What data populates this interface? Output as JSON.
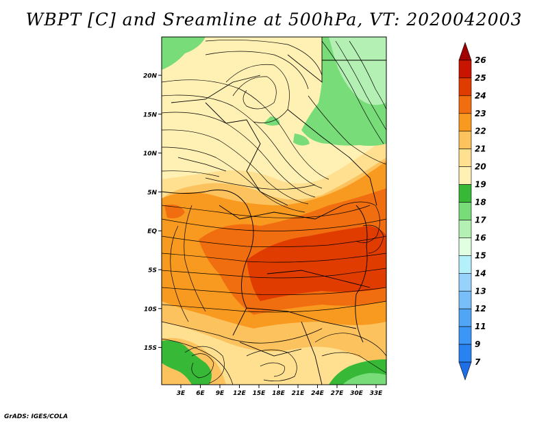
{
  "title": "WBPT [C] and Sreamline at 500hPa, VT: 2020042003",
  "credit": "GrADS: IGES/COLA",
  "lat_labels": [
    "20N",
    "15N",
    "10N",
    "5N",
    "EQ",
    "5S",
    "10S",
    "15S"
  ],
  "lon_labels": [
    "3E",
    "6E",
    "9E",
    "12E",
    "15E",
    "18E",
    "21E",
    "24E",
    "27E",
    "30E",
    "33E"
  ],
  "colorbar": {
    "labels": [
      "7",
      "9",
      "11",
      "12",
      "13",
      "14",
      "15",
      "16",
      "17",
      "18",
      "19",
      "20",
      "21",
      "22",
      "23",
      "24",
      "25",
      "26"
    ],
    "colors": [
      "#1e6ee6",
      "#2882f0",
      "#3c96f5",
      "#50a5f5",
      "#78bef8",
      "#96d2fa",
      "#b4f0fa",
      "#e1ffe1",
      "#b4f0b4",
      "#78dc78",
      "#37b837",
      "#fff0b4",
      "#ffe090",
      "#fcc25e",
      "#f99a20",
      "#f06e10",
      "#e03c00",
      "#c81400",
      "#a00000"
    ]
  },
  "colors": {
    "green_dark": "#37b837",
    "green_light": "#78dc78",
    "cream": "#fff0b4",
    "yellow": "#ffe090",
    "light_orange": "#fcc25e",
    "orange": "#f99a20",
    "dark_orange": "#f06e10",
    "red_orange": "#e03c00"
  }
}
